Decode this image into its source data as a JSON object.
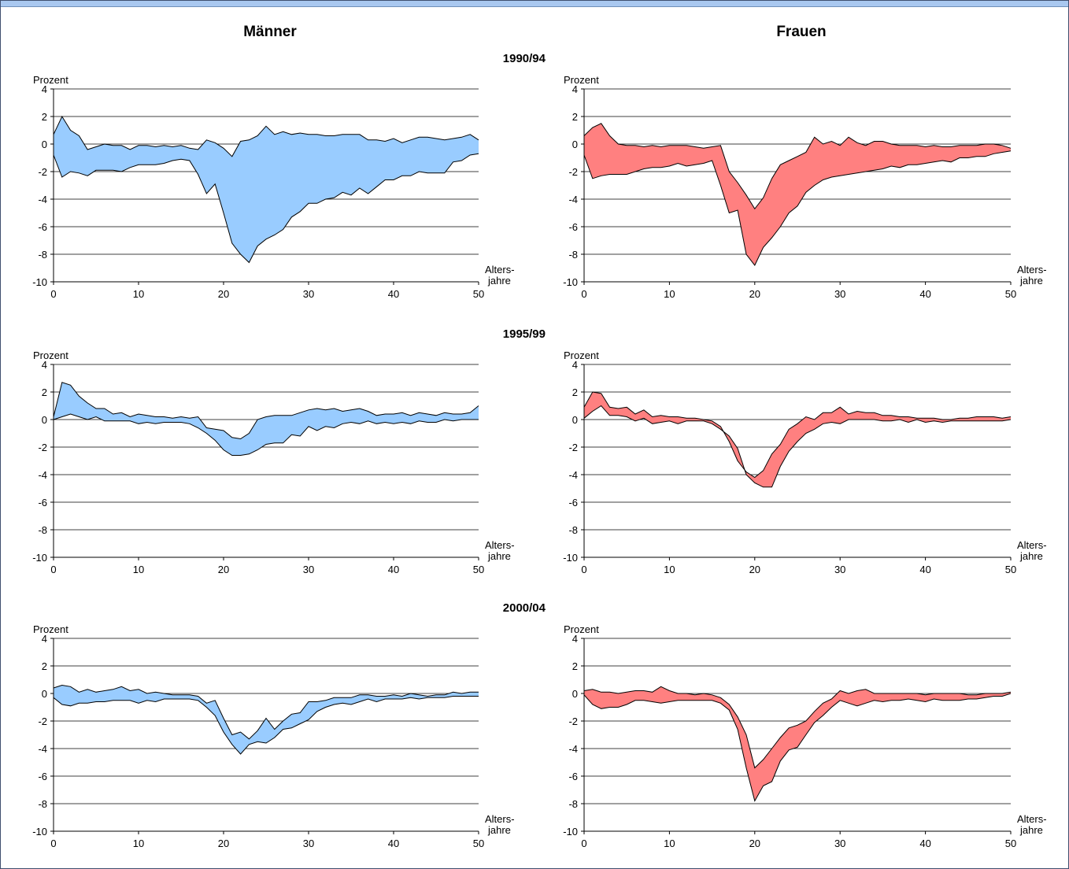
{
  "columns": {
    "left_title": "Männer",
    "right_title": "Frauen"
  },
  "periods": [
    "1990/94",
    "1995/99",
    "2000/04"
  ],
  "colors": {
    "maenner_fill": "#99ccff",
    "frauen_fill": "#ff8080",
    "outline": "#000000",
    "grid": "#000000"
  },
  "axis": {
    "ylabel": "Prozent",
    "xlabel_line1": "Alters-",
    "xlabel_line2": "jahre"
  },
  "chart_data": [
    {
      "type": "area",
      "panel": "Männer 1990/94",
      "x_ticks": [
        0,
        10,
        20,
        30,
        40,
        50
      ],
      "xlim": [
        0,
        50
      ],
      "ylim": [
        -10,
        4
      ],
      "y_ticks": [
        -10,
        -8,
        -6,
        -4,
        -2,
        0,
        2,
        4
      ],
      "grid": true,
      "series": [
        {
          "values": [
            0.7,
            2.0,
            1.0,
            0.6,
            -0.4,
            -0.2,
            0.0,
            -0.1,
            -0.1,
            -0.4,
            -0.1,
            -0.1,
            -0.2,
            -0.1,
            -0.2,
            -0.1,
            -0.3,
            -0.4,
            0.3,
            0.1,
            -0.3,
            -0.9,
            0.2,
            0.3,
            0.6,
            1.3,
            0.7,
            0.9,
            0.7,
            0.8,
            0.7,
            0.7,
            0.6,
            0.6,
            0.7,
            0.7,
            0.7,
            0.3,
            0.3,
            0.2,
            0.4,
            0.1,
            0.3,
            0.5,
            0.5,
            0.4,
            0.3,
            0.4,
            0.5,
            0.7,
            0.3
          ]
        },
        {
          "values": [
            -0.8,
            -2.4,
            -2.0,
            -2.1,
            -2.3,
            -1.9,
            -1.9,
            -1.9,
            -2.0,
            -1.7,
            -1.5,
            -1.5,
            -1.5,
            -1.4,
            -1.2,
            -1.1,
            -1.2,
            -2.2,
            -3.6,
            -2.9,
            -5.0,
            -7.2,
            -8.0,
            -8.6,
            -7.4,
            -6.9,
            -6.6,
            -6.2,
            -5.3,
            -4.9,
            -4.3,
            -4.3,
            -4.0,
            -3.9,
            -3.5,
            -3.7,
            -3.2,
            -3.6,
            -3.1,
            -2.6,
            -2.6,
            -2.3,
            -2.3,
            -2.0,
            -2.1,
            -2.1,
            -2.1,
            -1.3,
            -1.2,
            -0.8,
            -0.7
          ]
        }
      ]
    },
    {
      "type": "area",
      "panel": "Frauen 1990/94",
      "x_ticks": [
        0,
        10,
        20,
        30,
        40,
        50
      ],
      "xlim": [
        0,
        50
      ],
      "ylim": [
        -10,
        4
      ],
      "y_ticks": [
        -10,
        -8,
        -6,
        -4,
        -2,
        0,
        2,
        4
      ],
      "grid": true,
      "series": [
        {
          "values": [
            0.6,
            1.2,
            1.5,
            0.6,
            0.0,
            -0.1,
            -0.1,
            -0.2,
            -0.1,
            -0.2,
            -0.1,
            -0.1,
            -0.1,
            -0.2,
            -0.3,
            -0.2,
            -0.1,
            -2.0,
            -2.8,
            -3.7,
            -4.7,
            -3.9,
            -2.5,
            -1.5,
            -1.2,
            -0.9,
            -0.6,
            0.5,
            0.0,
            0.2,
            -0.1,
            0.5,
            0.1,
            -0.1,
            0.2,
            0.2,
            0.0,
            -0.1,
            -0.1,
            -0.1,
            -0.2,
            -0.1,
            -0.2,
            -0.2,
            -0.1,
            -0.1,
            -0.1,
            0.0,
            0.0,
            -0.1,
            -0.3
          ]
        },
        {
          "values": [
            -0.8,
            -2.5,
            -2.3,
            -2.2,
            -2.2,
            -2.2,
            -2.0,
            -1.8,
            -1.7,
            -1.7,
            -1.6,
            -1.4,
            -1.6,
            -1.5,
            -1.4,
            -1.2,
            -3.0,
            -5.0,
            -4.8,
            -8.0,
            -8.8,
            -7.5,
            -6.8,
            -6.0,
            -5.0,
            -4.5,
            -3.5,
            -3.0,
            -2.6,
            -2.4,
            -2.3,
            -2.2,
            -2.1,
            -2.0,
            -1.9,
            -1.8,
            -1.6,
            -1.7,
            -1.5,
            -1.5,
            -1.4,
            -1.3,
            -1.2,
            -1.3,
            -1.0,
            -1.0,
            -0.9,
            -0.9,
            -0.7,
            -0.6,
            -0.5
          ]
        }
      ]
    },
    {
      "type": "area",
      "panel": "Männer 1995/99",
      "x_ticks": [
        0,
        10,
        20,
        30,
        40,
        50
      ],
      "xlim": [
        0,
        50
      ],
      "ylim": [
        -10,
        4
      ],
      "y_ticks": [
        -10,
        -8,
        -6,
        -4,
        -2,
        0,
        2,
        4
      ],
      "grid": true,
      "series": [
        {
          "values": [
            0.2,
            2.7,
            2.5,
            1.7,
            1.2,
            0.8,
            0.8,
            0.4,
            0.5,
            0.2,
            0.4,
            0.3,
            0.2,
            0.2,
            0.1,
            0.2,
            0.1,
            0.2,
            -0.6,
            -0.7,
            -0.8,
            -1.3,
            -1.4,
            -1.0,
            0.0,
            0.2,
            0.3,
            0.3,
            0.3,
            0.5,
            0.7,
            0.8,
            0.7,
            0.8,
            0.6,
            0.7,
            0.8,
            0.6,
            0.3,
            0.4,
            0.4,
            0.5,
            0.3,
            0.5,
            0.4,
            0.3,
            0.5,
            0.4,
            0.4,
            0.5,
            1.0
          ]
        },
        {
          "values": [
            0.0,
            0.2,
            0.4,
            0.2,
            0.0,
            0.2,
            -0.1,
            -0.1,
            -0.1,
            -0.1,
            -0.3,
            -0.2,
            -0.3,
            -0.2,
            -0.2,
            -0.2,
            -0.3,
            -0.6,
            -1.0,
            -1.5,
            -2.2,
            -2.6,
            -2.6,
            -2.5,
            -2.2,
            -1.8,
            -1.7,
            -1.7,
            -1.1,
            -1.2,
            -0.5,
            -0.8,
            -0.5,
            -0.6,
            -0.3,
            -0.2,
            -0.3,
            -0.1,
            -0.3,
            -0.2,
            -0.3,
            -0.2,
            -0.3,
            -0.1,
            -0.2,
            -0.2,
            0.0,
            -0.1,
            0.0,
            0.0,
            0.0
          ]
        }
      ]
    },
    {
      "type": "area",
      "panel": "Frauen 1995/99",
      "x_ticks": [
        0,
        10,
        20,
        30,
        40,
        50
      ],
      "xlim": [
        0,
        50
      ],
      "ylim": [
        -10,
        4
      ],
      "y_ticks": [
        -10,
        -8,
        -6,
        -4,
        -2,
        0,
        2,
        4
      ],
      "grid": true,
      "series": [
        {
          "values": [
            0.9,
            2.0,
            1.9,
            0.9,
            0.8,
            0.9,
            0.4,
            0.7,
            0.2,
            0.3,
            0.2,
            0.2,
            0.1,
            0.1,
            0.0,
            -0.1,
            -0.5,
            -1.6,
            -3.0,
            -3.8,
            -4.2,
            -3.7,
            -2.5,
            -1.8,
            -0.7,
            -0.3,
            0.2,
            0.0,
            0.5,
            0.5,
            0.9,
            0.4,
            0.6,
            0.5,
            0.5,
            0.3,
            0.3,
            0.2,
            0.2,
            0.1,
            0.1,
            0.1,
            0.0,
            0.0,
            0.1,
            0.1,
            0.2,
            0.2,
            0.2,
            0.1,
            0.2
          ]
        },
        {
          "values": [
            0.1,
            0.6,
            1.0,
            0.3,
            0.3,
            0.2,
            -0.1,
            0.1,
            -0.3,
            -0.2,
            -0.1,
            -0.3,
            -0.1,
            -0.1,
            -0.1,
            -0.3,
            -0.7,
            -1.2,
            -2.1,
            -4.0,
            -4.6,
            -4.9,
            -4.9,
            -3.4,
            -2.3,
            -1.6,
            -1.0,
            -0.7,
            -0.3,
            -0.2,
            -0.3,
            0.0,
            0.0,
            0.0,
            0.0,
            -0.1,
            -0.1,
            0.0,
            -0.2,
            0.0,
            -0.2,
            -0.1,
            -0.2,
            -0.1,
            -0.1,
            -0.1,
            -0.1,
            -0.1,
            -0.1,
            -0.1,
            0.0
          ]
        }
      ]
    },
    {
      "type": "area",
      "panel": "Männer 2000/04",
      "x_ticks": [
        0,
        10,
        20,
        30,
        40,
        50
      ],
      "xlim": [
        0,
        50
      ],
      "ylim": [
        -10,
        4
      ],
      "y_ticks": [
        -10,
        -8,
        -6,
        -4,
        -2,
        0,
        2,
        4
      ],
      "grid": true,
      "series": [
        {
          "values": [
            0.4,
            0.6,
            0.5,
            0.1,
            0.3,
            0.1,
            0.2,
            0.3,
            0.5,
            0.2,
            0.3,
            0.0,
            0.1,
            0.0,
            -0.1,
            -0.1,
            -0.1,
            -0.2,
            -0.7,
            -0.5,
            -1.8,
            -3.0,
            -2.8,
            -3.3,
            -2.7,
            -1.8,
            -2.6,
            -2.0,
            -1.5,
            -1.4,
            -0.6,
            -0.6,
            -0.5,
            -0.3,
            -0.3,
            -0.3,
            -0.1,
            -0.1,
            -0.2,
            -0.2,
            -0.1,
            -0.2,
            0.0,
            -0.1,
            -0.2,
            -0.1,
            -0.1,
            0.1,
            0.0,
            0.1,
            0.1
          ]
        },
        {
          "values": [
            -0.3,
            -0.8,
            -0.9,
            -0.7,
            -0.7,
            -0.6,
            -0.6,
            -0.5,
            -0.5,
            -0.5,
            -0.7,
            -0.5,
            -0.6,
            -0.4,
            -0.4,
            -0.4,
            -0.4,
            -0.5,
            -1.0,
            -1.6,
            -2.8,
            -3.7,
            -4.4,
            -3.7,
            -3.5,
            -3.6,
            -3.2,
            -2.6,
            -2.5,
            -2.2,
            -1.9,
            -1.3,
            -1.0,
            -0.8,
            -0.7,
            -0.8,
            -0.6,
            -0.4,
            -0.6,
            -0.4,
            -0.4,
            -0.4,
            -0.3,
            -0.4,
            -0.3,
            -0.3,
            -0.3,
            -0.2,
            -0.2,
            -0.2,
            -0.2
          ]
        }
      ]
    },
    {
      "type": "area",
      "panel": "Frauen 2000/04",
      "x_ticks": [
        0,
        10,
        20,
        30,
        40,
        50
      ],
      "xlim": [
        0,
        50
      ],
      "ylim": [
        -10,
        4
      ],
      "y_ticks": [
        -10,
        -8,
        -6,
        -4,
        -2,
        0,
        2,
        4
      ],
      "grid": true,
      "series": [
        {
          "values": [
            0.2,
            0.3,
            0.1,
            0.1,
            0.0,
            0.1,
            0.2,
            0.2,
            0.1,
            0.5,
            0.2,
            0.0,
            0.0,
            -0.1,
            0.0,
            -0.1,
            -0.3,
            -0.8,
            -1.7,
            -3.0,
            -5.4,
            -4.8,
            -4.0,
            -3.2,
            -2.5,
            -2.3,
            -2.0,
            -1.3,
            -0.7,
            -0.4,
            0.2,
            0.0,
            0.2,
            0.3,
            0.0,
            0.0,
            0.0,
            0.0,
            0.0,
            0.0,
            -0.1,
            0.0,
            0.0,
            0.0,
            0.0,
            -0.1,
            -0.1,
            0.0,
            0.0,
            0.0,
            0.1
          ]
        },
        {
          "values": [
            -0.1,
            -0.8,
            -1.1,
            -1.0,
            -1.0,
            -0.8,
            -0.5,
            -0.5,
            -0.6,
            -0.7,
            -0.6,
            -0.5,
            -0.5,
            -0.5,
            -0.5,
            -0.5,
            -0.7,
            -1.2,
            -2.6,
            -5.4,
            -7.8,
            -6.7,
            -6.4,
            -4.9,
            -4.1,
            -3.9,
            -3.0,
            -2.1,
            -1.6,
            -1.0,
            -0.5,
            -0.7,
            -0.9,
            -0.7,
            -0.5,
            -0.6,
            -0.5,
            -0.5,
            -0.4,
            -0.5,
            -0.6,
            -0.4,
            -0.5,
            -0.5,
            -0.5,
            -0.4,
            -0.4,
            -0.3,
            -0.2,
            -0.2,
            0.0
          ]
        }
      ]
    }
  ]
}
